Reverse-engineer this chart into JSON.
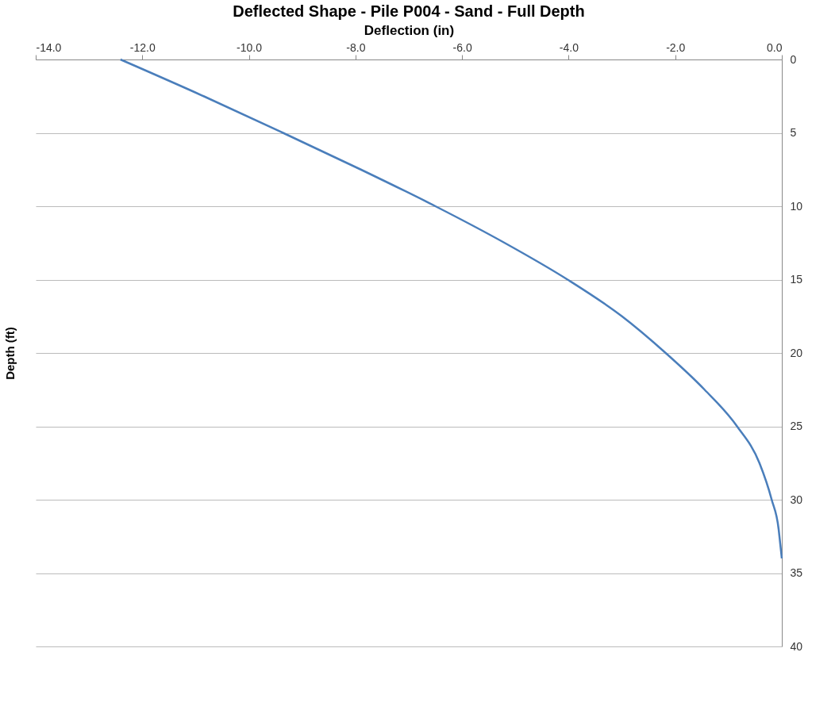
{
  "chart_data": {
    "type": "line",
    "title": "Deflected Shape - Pile P004 - Sand - Full Depth",
    "xlabel": "Deflection (in)",
    "ylabel": "Depth (ft)",
    "series": [
      {
        "color": "#4a7ebb",
        "x": [
          -12.41,
          -10.85,
          -9.36,
          -7.9,
          -6.5,
          -5.2,
          -4.02,
          -3.0,
          -2.18,
          -1.45,
          -0.84,
          -0.42,
          -0.19,
          -0.06,
          -0.03,
          0.0
        ],
        "values": [
          0,
          2.5,
          5,
          7.5,
          10,
          12.5,
          15,
          17.5,
          20,
          22.5,
          25,
          27.5,
          30,
          32,
          33,
          34
        ]
      }
    ],
    "xlim": [
      -14,
      0
    ],
    "xticks": [
      {
        "value": -14,
        "label": "-14.0"
      },
      {
        "value": -12,
        "label": "-12.0"
      },
      {
        "value": -10,
        "label": "-10.0"
      },
      {
        "value": -8,
        "label": "-8.0"
      },
      {
        "value": -6,
        "label": "-6.0"
      },
      {
        "value": -4,
        "label": "-4.0"
      },
      {
        "value": -2,
        "label": "-2.0"
      },
      {
        "value": 0,
        "label": "0.0"
      }
    ],
    "ylim": [
      40,
      0
    ],
    "yticks": [
      0,
      5,
      10,
      15,
      20,
      25,
      30,
      35,
      40
    ],
    "grid": "y",
    "marker": "none",
    "line_style": "solid"
  }
}
